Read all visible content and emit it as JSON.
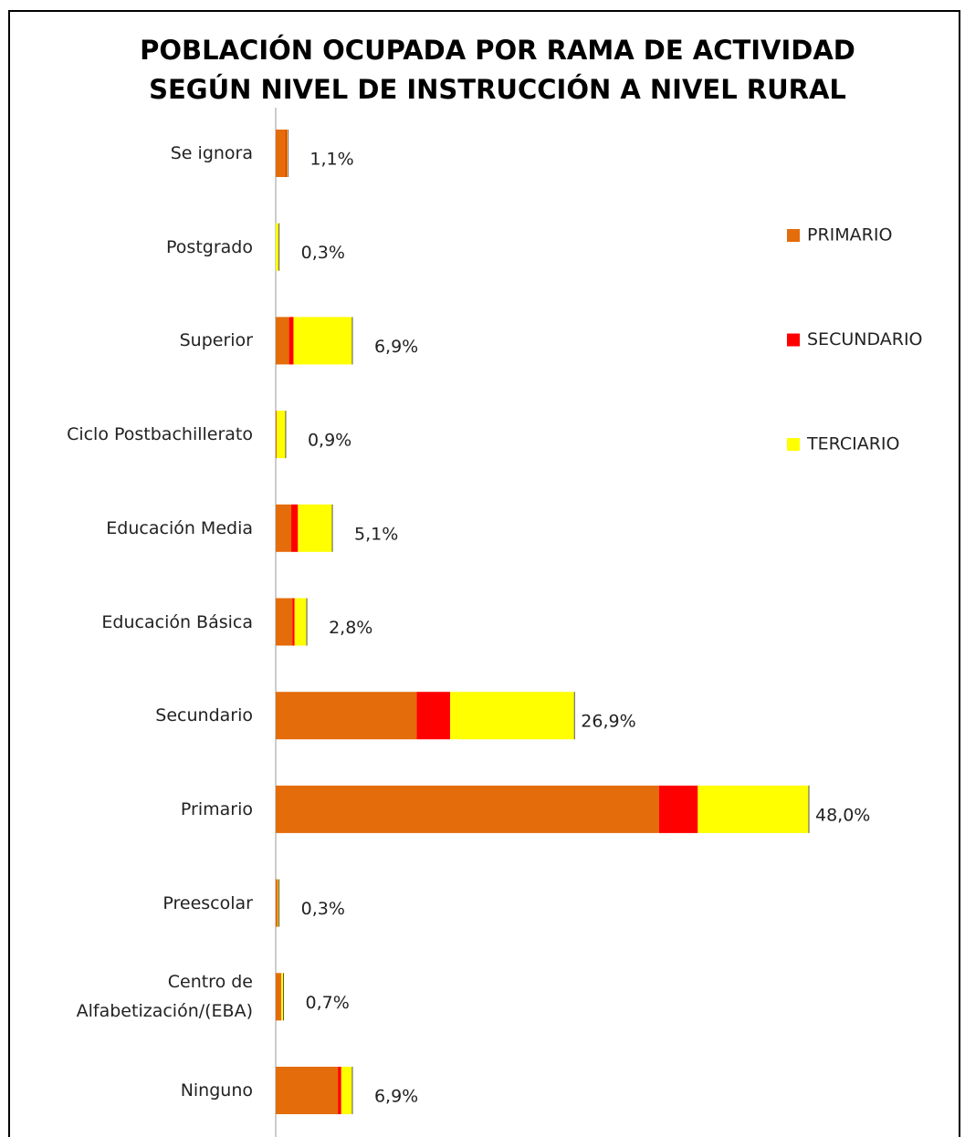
{
  "chart_data": {
    "type": "stacked-bar-horizontal",
    "title": [
      "POBLACIÓN OCUPADA POR RAMA DE ACTIVIDAD",
      "SEGÚN NIVEL DE INSTRUCCIÓN A NIVEL RURAL"
    ],
    "categories": [
      "Se ignora",
      "Postgrado",
      "Superior",
      "Ciclo Postbachillerato",
      "Educación Media",
      "Educación Básica",
      "Secundario",
      "Primario",
      "Preescolar",
      "Centro de Alfabetización/(EBA)",
      "Ninguno"
    ],
    "series": [
      {
        "name": "PRIMARIO",
        "color": "#E46C0A",
        "values": [
          0.9,
          0.0,
          1.2,
          0.1,
          1.4,
          1.5,
          12.7,
          34.5,
          0.2,
          0.5,
          5.6
        ]
      },
      {
        "name": "SECUNDARIO",
        "color": "#FF0000",
        "values": [
          0.1,
          0.0,
          0.4,
          0.0,
          0.6,
          0.2,
          3.0,
          3.5,
          0.0,
          0.0,
          0.3
        ]
      },
      {
        "name": "TERCIARIO",
        "color": "#FFFF00",
        "values": [
          0.1,
          0.3,
          5.3,
          0.8,
          3.1,
          1.1,
          11.2,
          10.0,
          0.1,
          0.2,
          1.0
        ]
      }
    ],
    "totals": {
      "values": [
        1.1,
        0.3,
        6.9,
        0.9,
        5.1,
        2.8,
        26.9,
        48.0,
        0.3,
        0.7,
        6.9
      ],
      "value_labels": [
        "1,1%",
        "0,3%",
        "6,9%",
        "0,9%",
        "5,1%",
        "2,8%",
        "26,9%",
        "48,0%",
        "0,3%",
        "0,7%",
        "6,9%"
      ]
    },
    "xlim": [
      0,
      60
    ],
    "legend": "right"
  }
}
